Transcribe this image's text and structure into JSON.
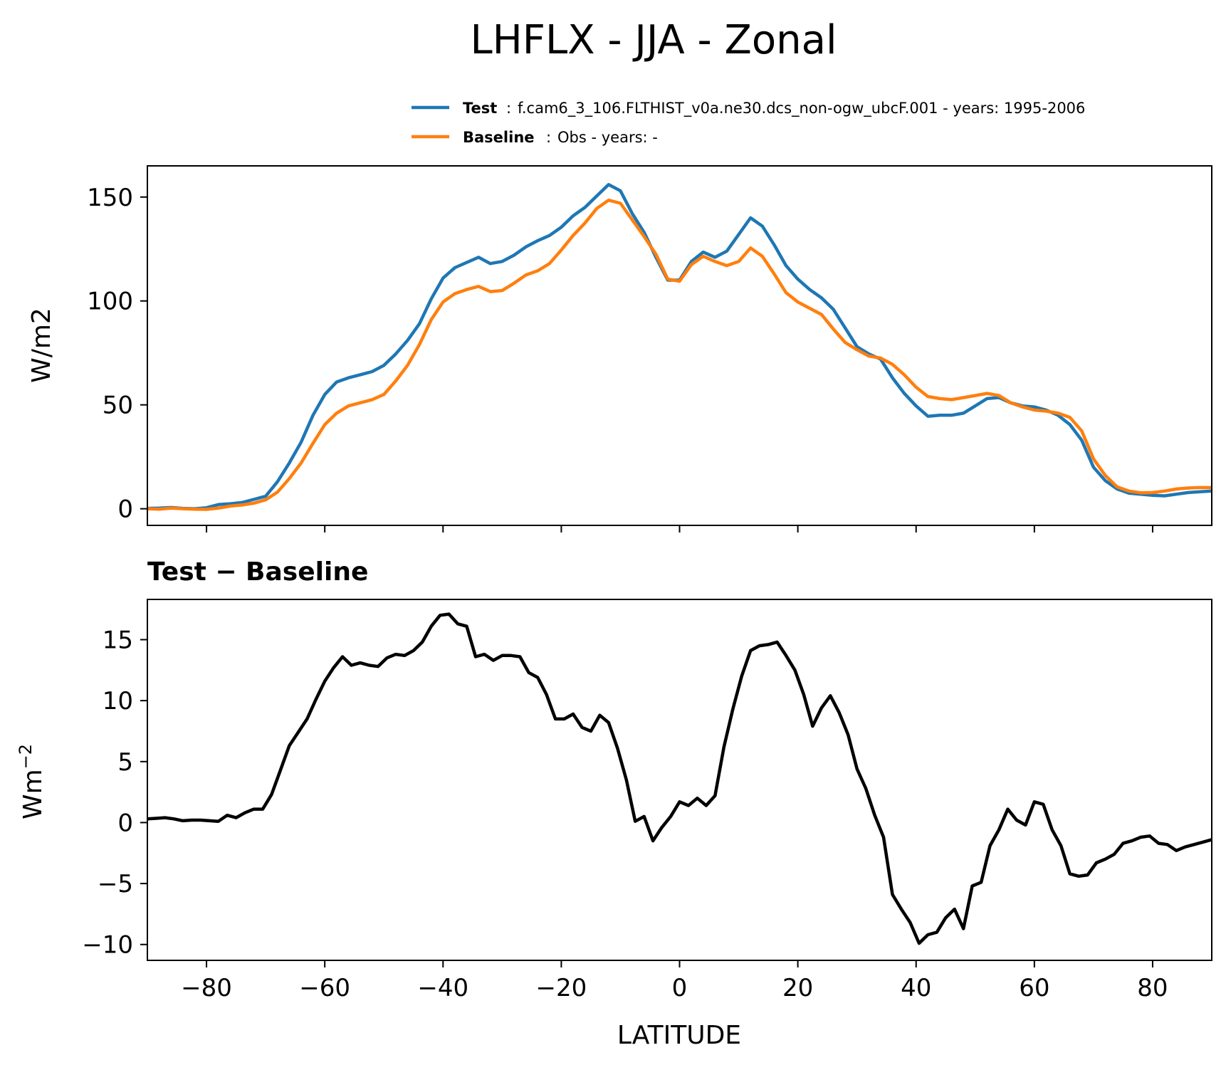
{
  "chart_data": [
    {
      "type": "line",
      "title": "LHFLX - JJA - Zonal",
      "ylabel": "W/m2",
      "xlim": [
        -90,
        90
      ],
      "ylim": [
        -8,
        165
      ],
      "yticks": [
        0,
        50,
        100,
        150
      ],
      "legend": {
        "placement": "top-right",
        "entries": [
          {
            "name": "Test",
            "label": "f.cam6_3_106.FLTHIST_v0a.ne30.dcs_non-ogw_ubcF.001 - years: 1995-2006",
            "color": "#1f77b4"
          },
          {
            "name": "Baseline",
            "label": "Obs - years: -",
            "color": "#ff7f0e"
          }
        ]
      },
      "x": [
        -90,
        -88,
        -86,
        -84,
        -82,
        -80,
        -78,
        -76,
        -74,
        -72,
        -70,
        -68,
        -66,
        -64,
        -62,
        -60,
        -58,
        -56,
        -54,
        -52,
        -50,
        -48,
        -46,
        -44,
        -42,
        -40,
        -38,
        -36,
        -34,
        -32,
        -30,
        -28,
        -26,
        -24,
        -22,
        -20,
        -18,
        -16,
        -14,
        -12,
        -10,
        -8,
        -6,
        -4,
        -2,
        0,
        2,
        4,
        6,
        8,
        10,
        12,
        14,
        16,
        18,
        20,
        22,
        24,
        26,
        28,
        30,
        32,
        34,
        36,
        38,
        40,
        42,
        44,
        46,
        48,
        50,
        52,
        54,
        56,
        58,
        60,
        62,
        64,
        66,
        68,
        70,
        72,
        74,
        76,
        78,
        80,
        82,
        84,
        86,
        88,
        90
      ],
      "series": [
        {
          "name": "Test",
          "color": "#1f77b4",
          "values": [
            0.2,
            0.3,
            0.6,
            0.2,
            0.0,
            0.5,
            2.0,
            2.4,
            3.0,
            4.5,
            6.0,
            13.0,
            22.0,
            32.0,
            45.0,
            55.0,
            61.0,
            63.0,
            64.5,
            66.0,
            69.0,
            74.5,
            81.0,
            89.0,
            101.0,
            111.0,
            116.0,
            118.5,
            121.0,
            118.0,
            119.0,
            122.0,
            126.0,
            129.0,
            131.5,
            135.5,
            141.0,
            145.0,
            150.5,
            156.0,
            153.0,
            142.0,
            133.0,
            121.0,
            110.0,
            110.0,
            119.0,
            123.5,
            121.0,
            124.0,
            132.0,
            140.0,
            136.0,
            127.0,
            117.0,
            110.5,
            105.5,
            101.5,
            96.0,
            87.0,
            78.0,
            74.5,
            72.0,
            63.0,
            55.5,
            49.5,
            44.5,
            45.0,
            45.0,
            46.0,
            49.5,
            53.0,
            53.5,
            51.0,
            49.5,
            49.0,
            47.5,
            45.0,
            40.5,
            33.0,
            20.0,
            13.5,
            9.5,
            7.5,
            7.0,
            6.5,
            6.2,
            7.0,
            7.8,
            8.2,
            8.5
          ]
        },
        {
          "name": "Baseline",
          "color": "#ff7f0e",
          "values": [
            0.0,
            -0.2,
            0.3,
            0.0,
            -0.2,
            -0.3,
            0.3,
            1.3,
            1.8,
            2.7,
            4.3,
            8.0,
            14.5,
            22.0,
            31.5,
            40.5,
            46.0,
            49.5,
            51.0,
            52.5,
            55.0,
            61.5,
            69.0,
            79.0,
            91.0,
            99.5,
            103.5,
            105.5,
            107.0,
            104.5,
            105.0,
            108.5,
            112.5,
            114.5,
            118.0,
            124.5,
            131.5,
            137.5,
            144.5,
            148.5,
            147.0,
            139.0,
            131.0,
            122.5,
            110.5,
            109.5,
            117.5,
            121.5,
            119.0,
            117.0,
            119.0,
            125.5,
            121.5,
            113.0,
            104.0,
            99.5,
            96.5,
            93.5,
            86.5,
            80.0,
            76.5,
            73.5,
            72.5,
            69.5,
            64.5,
            58.5,
            54.0,
            53.0,
            52.5,
            53.5,
            54.5,
            55.5,
            54.5,
            51.0,
            49.0,
            47.5,
            47.0,
            46.0,
            44.0,
            37.5,
            24.0,
            16.0,
            10.5,
            8.5,
            7.7,
            7.8,
            8.5,
            9.5,
            10.0,
            10.2,
            10.2
          ]
        }
      ]
    },
    {
      "type": "line",
      "title": "Test − Baseline",
      "ylabel": "Wm−2",
      "xlabel": "LATITUDE",
      "xlim": [
        -90,
        90
      ],
      "ylim": [
        -11.3,
        18.3
      ],
      "xticks": [
        -80,
        -60,
        -40,
        -20,
        0,
        20,
        40,
        60,
        80
      ],
      "yticks": [
        -10,
        -5,
        0,
        5,
        10,
        15
      ],
      "x": [
        -90,
        -88.5,
        -87,
        -85.5,
        -84,
        -82.5,
        -81,
        -79.5,
        -78,
        -76.5,
        -75,
        -73.5,
        -72,
        -70.5,
        -69,
        -67.5,
        -66,
        -64.5,
        -63,
        -61.5,
        -60,
        -58.5,
        -57,
        -55.5,
        -54,
        -52.5,
        -51,
        -49.5,
        -48,
        -46.5,
        -45,
        -43.5,
        -42,
        -40.5,
        -39,
        -37.5,
        -36,
        -34.5,
        -33,
        -31.5,
        -30,
        -28.5,
        -27,
        -25.5,
        -24,
        -22.5,
        -21,
        -19.5,
        -18,
        -16.5,
        -15,
        -13.5,
        -12,
        -10.5,
        -9,
        -7.5,
        -6,
        -4.5,
        -3,
        -1.5,
        0,
        1.5,
        3,
        4.5,
        6,
        7.5,
        9,
        10.5,
        12,
        13.5,
        15,
        16.5,
        18,
        19.5,
        21,
        22.5,
        24,
        25.5,
        27,
        28.5,
        30,
        31.5,
        33,
        34.5,
        36,
        37.5,
        39,
        40.5,
        42,
        43.5,
        45,
        46.5,
        48,
        49.5,
        51,
        52.5,
        54,
        55.5,
        57,
        58.5,
        60,
        61.5,
        63,
        64.5,
        66,
        67.5,
        69,
        70.5,
        72,
        73.5,
        75,
        76.5,
        78,
        79.5,
        81,
        82.5,
        84,
        85.5,
        87,
        88.5,
        90
      ],
      "series": [
        {
          "name": "",
          "color": "#000000",
          "values": [
            0.3,
            0.35,
            0.4,
            0.3,
            0.15,
            0.2,
            0.2,
            0.15,
            0.1,
            0.6,
            0.4,
            0.8,
            1.1,
            1.1,
            2.3,
            4.3,
            6.3,
            7.4,
            8.5,
            10.1,
            11.6,
            12.7,
            13.6,
            12.9,
            13.1,
            12.9,
            12.8,
            13.5,
            13.8,
            13.7,
            14.1,
            14.8,
            16.1,
            17.0,
            17.1,
            16.3,
            16.1,
            13.6,
            13.8,
            13.3,
            13.7,
            13.7,
            13.6,
            12.3,
            11.9,
            10.5,
            8.5,
            8.5,
            8.9,
            7.8,
            7.5,
            8.8,
            8.2,
            6.1,
            3.5,
            0.1,
            0.5,
            -1.5,
            -0.4,
            0.5,
            1.7,
            1.4,
            2.0,
            1.4,
            2.2,
            6.2,
            9.3,
            12.0,
            14.1,
            14.5,
            14.6,
            14.8,
            13.7,
            12.5,
            10.5,
            7.9,
            9.4,
            10.4,
            9.0,
            7.2,
            4.4,
            2.8,
            0.6,
            -1.2,
            -5.9,
            -7.1,
            -8.2,
            -9.9,
            -9.2,
            -9.0,
            -7.8,
            -7.1,
            -8.7,
            -5.2,
            -4.9,
            -1.9,
            -0.6,
            1.1,
            0.2,
            -0.2,
            1.7,
            1.5,
            -0.6,
            -1.9,
            -4.2,
            -4.4,
            -4.3,
            -3.3,
            -3.0,
            -2.6,
            -1.7,
            -1.5,
            -1.2,
            -1.1,
            -1.7,
            -1.8,
            -2.3,
            -2.0,
            -1.8,
            -1.6,
            -1.4
          ]
        }
      ]
    }
  ]
}
